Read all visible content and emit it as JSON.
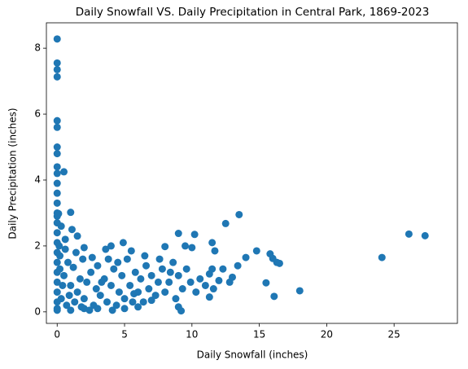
{
  "chart_data": {
    "type": "scatter",
    "title": "Daily Snowfall VS. Daily Precipitation in Central Park, 1869-2023",
    "x_label": "Daily Snowfall (inches)",
    "y_label": "Daily Precipitation (inches)",
    "color": "#1f77b4",
    "xlim": [
      -0.8,
      29.7
    ],
    "ylim": [
      -0.35,
      8.77
    ],
    "xticks": [
      0,
      5,
      10,
      15,
      20,
      25
    ],
    "yticks": [
      0,
      2,
      4,
      6,
      8
    ],
    "x": [
      0,
      0,
      0,
      0,
      0,
      0,
      0,
      0,
      0.5,
      1,
      27.3,
      26.1,
      24.1,
      18,
      16.5,
      16.3,
      16,
      15.8,
      15.5,
      14.8,
      16.1,
      13.5,
      12.5,
      14,
      13.4,
      10.2,
      9,
      11.5,
      11.7,
      8,
      9.5,
      10,
      9.2,
      9,
      7,
      5.5,
      4.9,
      4,
      3.6,
      2,
      1.5,
      0.6,
      0,
      0,
      0,
      0,
      0,
      0,
      0,
      0,
      0,
      0,
      0,
      0,
      0,
      0,
      0,
      0,
      0,
      0,
      0.1,
      0.2,
      0.3,
      0.5,
      0.7,
      0.8,
      1,
      1.2,
      1.3,
      1.5,
      1.7,
      1.9,
      2,
      2.2,
      2.5,
      2.7,
      2.9,
      3,
      3.2,
      3.5,
      3.7,
      4,
      4.2,
      4.4,
      4.6,
      4.8,
      5,
      5.2,
      5.4,
      5.6,
      5.8,
      6,
      6.2,
      6.4,
      6.6,
      6.8,
      7,
      7.3,
      7.5,
      7.8,
      8,
      8.3,
      8.6,
      8.8,
      9,
      9.3,
      9.6,
      9.9,
      10.3,
      10.6,
      11,
      11.3,
      11.6,
      12,
      12.3,
      12.8,
      13,
      3,
      6,
      1,
      2,
      0.4,
      0.9,
      1.8,
      2.4,
      5,
      3.8,
      4.5,
      6.5,
      7.6,
      8.4,
      11.3,
      11.5,
      0.3,
      0.6,
      1.1,
      1.4,
      2.6,
      3.3,
      4.1,
      5.7,
      0.2,
      0.15
    ],
    "values": [
      8.28,
      7.55,
      7.35,
      7.13,
      5.8,
      5.6,
      5.0,
      4.8,
      4.25,
      3.02,
      2.31,
      2.36,
      1.65,
      0.64,
      1.47,
      1.5,
      1.62,
      1.76,
      0.88,
      1.85,
      0.47,
      2.95,
      2.68,
      1.65,
      1.4,
      2.35,
      2.38,
      2.1,
      1.85,
      1.98,
      2,
      1.95,
      0.03,
      0.15,
      0.35,
      1.85,
      2.1,
      2,
      1.9,
      1.95,
      2.3,
      2.2,
      0.1,
      0.3,
      0.6,
      0.9,
      1.2,
      1.5,
      1.8,
      2.1,
      2.4,
      2.7,
      3.0,
      3.3,
      3.6,
      3.9,
      4.2,
      4.4,
      2.9,
      0.05,
      2.98,
      1.7,
      0.4,
      1.1,
      0.2,
      1.5,
      0.8,
      1.35,
      0.3,
      0.6,
      1.0,
      1.6,
      0.4,
      0.9,
      1.2,
      0.2,
      0.7,
      1.4,
      0.5,
      1.0,
      0.3,
      0.8,
      1.3,
      0.2,
      0.6,
      1.1,
      0.4,
      1.6,
      0.8,
      0.3,
      1.2,
      0.6,
      1.0,
      0.3,
      1.4,
      0.7,
      1.1,
      0.5,
      0.9,
      1.3,
      0.6,
      0.9,
      1.5,
      0.4,
      1.1,
      0.7,
      1.3,
      0.9,
      0.6,
      1.0,
      0.8,
      1.15,
      0.7,
      0.95,
      1.3,
      0.9,
      1.05,
      0.1,
      0.15,
      0.05,
      0.1,
      0.8,
      0.5,
      0.15,
      0.05,
      0.1,
      1.6,
      1.5,
      1.7,
      1.6,
      1.2,
      0.45,
      1.3,
      2.6,
      1.9,
      2.5,
      1.8,
      1.65,
      0.9,
      0.05,
      0.55,
      1.3,
      2.0
    ]
  }
}
